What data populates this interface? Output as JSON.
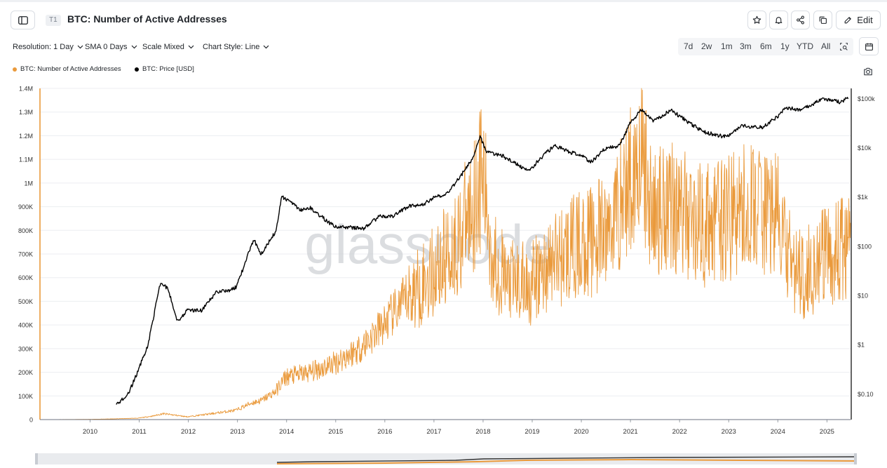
{
  "header": {
    "badge": "T1",
    "title": "BTC: Number of Active Addresses",
    "edit_label": "Edit"
  },
  "controls": {
    "resolution": "Resolution: 1 Day",
    "sma": "SMA 0 Days",
    "scale": "Scale Mixed",
    "style": "Chart Style: Line"
  },
  "ranges": [
    "7d",
    "2w",
    "1m",
    "3m",
    "6m",
    "1y",
    "YTD",
    "All"
  ],
  "legend": {
    "series1": "BTC: Number of Active Addresses",
    "series2": "BTC: Price [USD]"
  },
  "watermark": "glassnode",
  "colors": {
    "addresses": "#ea9a3c",
    "price": "#000000",
    "grid": "#eceef1"
  },
  "chart_data": {
    "type": "line",
    "title": "BTC: Number of Active Addresses",
    "x_ticks": [
      "2010",
      "2011",
      "2012",
      "2013",
      "2014",
      "2015",
      "2016",
      "2017",
      "2018",
      "2019",
      "2020",
      "2021",
      "2022",
      "2023",
      "2024",
      "2025"
    ],
    "xlim": [
      2009.0,
      2025.5
    ],
    "y_left": {
      "ticks": [
        0,
        100000,
        200000,
        300000,
        400000,
        500000,
        600000,
        700000,
        800000,
        900000,
        1000000,
        1100000,
        1200000,
        1300000,
        1400000
      ],
      "tick_labels": [
        "0",
        "100K",
        "200K",
        "300K",
        "400K",
        "500K",
        "600K",
        "700K",
        "800K",
        "900K",
        "1M",
        "1.1M",
        "1.2M",
        "1.3M",
        "1.4M"
      ],
      "range": [
        0,
        1400000
      ]
    },
    "y_right": {
      "scale": "log",
      "ticks": [
        0.1,
        1,
        10,
        100,
        1000,
        10000,
        100000
      ],
      "tick_labels": [
        "$0.10",
        "$1",
        "$10",
        "$100",
        "$1k",
        "$10k",
        "$100k"
      ],
      "range": [
        0.03,
        160000
      ]
    },
    "series": [
      {
        "name": "BTC: Number of Active Addresses",
        "axis": "left",
        "x": [
          2009.0,
          2010.0,
          2010.5,
          2011.0,
          2011.3,
          2011.5,
          2011.7,
          2012.0,
          2012.5,
          2013.0,
          2013.3,
          2013.5,
          2013.8,
          2014.0,
          2014.5,
          2015.0,
          2015.5,
          2016.0,
          2016.5,
          2017.0,
          2017.5,
          2017.8,
          2018.0,
          2018.2,
          2018.5,
          2019.0,
          2019.5,
          2020.0,
          2020.5,
          2021.0,
          2021.2,
          2021.5,
          2021.8,
          2022.0,
          2022.5,
          2023.0,
          2023.5,
          2024.0,
          2024.3,
          2024.5,
          2025.0,
          2025.4
        ],
        "values": [
          0,
          1000,
          3000,
          6000,
          15000,
          25000,
          20000,
          12000,
          25000,
          40000,
          70000,
          80000,
          120000,
          180000,
          200000,
          240000,
          300000,
          400000,
          520000,
          620000,
          750000,
          900000,
          1050000,
          700000,
          580000,
          570000,
          680000,
          740000,
          780000,
          1000000,
          1150000,
          850000,
          950000,
          880000,
          820000,
          850000,
          900000,
          860000,
          640000,
          620000,
          680000,
          720000
        ]
      },
      {
        "name": "BTC: Price [USD]",
        "axis": "right",
        "x": [
          2010.55,
          2010.8,
          2011.0,
          2011.2,
          2011.45,
          2011.6,
          2011.8,
          2012.0,
          2012.3,
          2012.6,
          2012.9,
          2013.0,
          2013.3,
          2013.35,
          2013.5,
          2013.8,
          2013.92,
          2014.1,
          2014.3,
          2014.5,
          2014.8,
          2015.0,
          2015.3,
          2015.6,
          2015.9,
          2016.2,
          2016.5,
          2016.8,
          2017.0,
          2017.3,
          2017.6,
          2017.8,
          2017.96,
          2018.1,
          2018.4,
          2018.9,
          2019.0,
          2019.3,
          2019.5,
          2019.8,
          2020.0,
          2020.2,
          2020.5,
          2020.8,
          2021.0,
          2021.25,
          2021.5,
          2021.85,
          2022.0,
          2022.5,
          2022.9,
          2023.0,
          2023.3,
          2023.7,
          2024.0,
          2024.2,
          2024.5,
          2024.9,
          2025.0,
          2025.3,
          2025.45
        ],
        "values": [
          0.06,
          0.1,
          0.3,
          1.0,
          18,
          14,
          3,
          5,
          5,
          12,
          13,
          15,
          100,
          140,
          70,
          200,
          1000,
          800,
          550,
          600,
          350,
          250,
          240,
          230,
          400,
          410,
          650,
          700,
          950,
          1200,
          3000,
          6000,
          17000,
          8000,
          7000,
          3500,
          3800,
          8000,
          11000,
          8000,
          7200,
          5000,
          9500,
          11000,
          30000,
          60000,
          35000,
          60000,
          45000,
          21000,
          17000,
          17000,
          28000,
          26000,
          42000,
          65000,
          58000,
          95000,
          98000,
          84000,
          105000
        ]
      }
    ]
  }
}
